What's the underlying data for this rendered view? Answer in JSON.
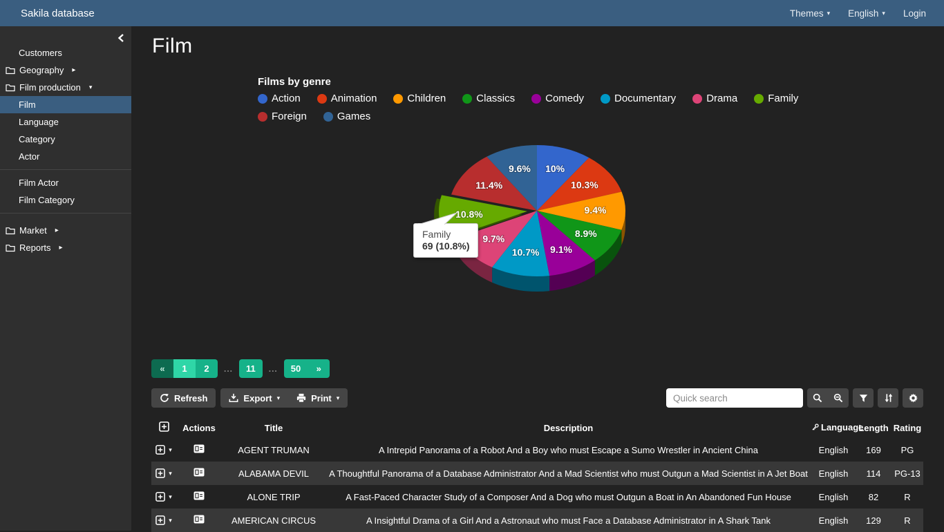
{
  "navbar": {
    "brand": "Sakila database",
    "themes_label": "Themes",
    "language_label": "English",
    "login_label": "Login",
    "caret_icon": "chevron-down-icon"
  },
  "sidebar": {
    "collapse_icon": "chevron-left-icon",
    "items": [
      {
        "label": "Customers",
        "type": "leaf"
      },
      {
        "label": "Geography",
        "type": "folder",
        "icon": "folder-icon",
        "caret": "right"
      },
      {
        "label": "Film production",
        "type": "folder",
        "icon": "folder-icon",
        "caret": "down",
        "expanded": true
      },
      {
        "label": "Film",
        "type": "child",
        "active": true
      },
      {
        "label": "Language",
        "type": "child"
      },
      {
        "label": "Category",
        "type": "child"
      },
      {
        "label": "Actor",
        "type": "child"
      },
      {
        "label": "Film Actor",
        "type": "child"
      },
      {
        "label": "Film Category",
        "type": "child"
      },
      {
        "label": "Market",
        "type": "folder",
        "icon": "folder-icon",
        "caret": "right"
      },
      {
        "label": "Reports",
        "type": "folder",
        "icon": "folder-icon",
        "caret": "right"
      }
    ]
  },
  "page": {
    "title": "Film"
  },
  "chart_data": {
    "type": "pie",
    "style": "3d",
    "title": "Films by genre",
    "legend_position": "top",
    "slices": [
      {
        "label": "Action",
        "pct": 10.0,
        "display": "10%",
        "color": "#3366cc"
      },
      {
        "label": "Animation",
        "pct": 10.3,
        "display": "10.3%",
        "color": "#dc3912"
      },
      {
        "label": "Children",
        "pct": 9.4,
        "display": "9.4%",
        "color": "#ff9900"
      },
      {
        "label": "Classics",
        "pct": 8.9,
        "display": "8.9%",
        "color": "#109618"
      },
      {
        "label": "Comedy",
        "pct": 9.1,
        "display": "9.1%",
        "color": "#990099"
      },
      {
        "label": "Documentary",
        "pct": 10.7,
        "display": "10.7%",
        "color": "#0099c6"
      },
      {
        "label": "Drama",
        "pct": 9.7,
        "display": "9.7%",
        "color": "#dd4477"
      },
      {
        "label": "Family",
        "pct": 10.8,
        "display": "10.8%",
        "color": "#66aa00",
        "exploded": true,
        "value": 69
      },
      {
        "label": "Foreign",
        "pct": 11.4,
        "display": "11.4%",
        "color": "#b82e2e"
      },
      {
        "label": "Games",
        "pct": 9.6,
        "display": "9.6%",
        "color": "#316395"
      }
    ],
    "tooltip": {
      "title": "Family",
      "text": "69 (10.8%)"
    }
  },
  "pagination": {
    "prev_label": "«",
    "next_label": "»",
    "gap": "...",
    "pages": [
      {
        "label": "1",
        "state": "active"
      },
      {
        "label": "2",
        "state": "normal"
      },
      {
        "label": "11",
        "state": "normal"
      },
      {
        "label": "50",
        "state": "normal"
      }
    ]
  },
  "toolbar": {
    "refresh_label": "Refresh",
    "refresh_icon": "refresh-icon",
    "export_label": "Export",
    "export_icon": "export-icon",
    "print_label": "Print",
    "print_icon": "print-icon",
    "search_placeholder": "Quick search",
    "search_value": "",
    "icons": [
      "search-icon",
      "search-minus-icon",
      "filter-icon",
      "sort-icon",
      "gear-icon"
    ]
  },
  "table": {
    "expand_all_icon": "plus-square-icon",
    "language_key_icon": "key-icon",
    "headers": {
      "actions": "Actions",
      "title": "Title",
      "description": "Description",
      "language": "Language",
      "length": "Length",
      "rating": "Rating"
    },
    "rows": [
      {
        "title": "AGENT TRUMAN",
        "description": "A Intrepid Panorama of a Robot And a Boy who must Escape a Sumo Wrestler in Ancient China",
        "language": "English",
        "length": "169",
        "rating": "PG"
      },
      {
        "title": "ALABAMA DEVIL",
        "description": "A Thoughtful Panorama of a Database Administrator And a Mad Scientist who must Outgun a Mad Scientist in A Jet Boat",
        "language": "English",
        "length": "114",
        "rating": "PG-13"
      },
      {
        "title": "ALONE TRIP",
        "description": "A Fast-Paced Character Study of a Composer And a Dog who must Outgun a Boat in An Abandoned Fun House",
        "language": "English",
        "length": "82",
        "rating": "R"
      },
      {
        "title": "AMERICAN CIRCUS",
        "description": "A Insightful Drama of a Girl And a Astronaut who must Face a Database Administrator in A Shark Tank",
        "language": "English",
        "length": "129",
        "rating": "R"
      }
    ]
  },
  "colors": {
    "navbar": "#3a5e80",
    "sidebar_bg": "#2f2f2f",
    "main_bg": "#222222",
    "active_item": "#3a5e80",
    "stripe": "#383838",
    "button_bg": "#454545",
    "pagination_active": "#2fd6a7",
    "pagination_normal": "#16b289",
    "pagination_prev": "#0d6b50"
  }
}
